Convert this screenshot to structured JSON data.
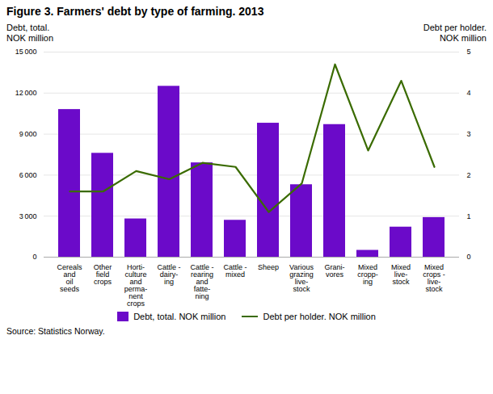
{
  "chart_data": {
    "type": "bar",
    "title": "Figure 3. Farmers' debt by type of farming. 2013",
    "ylabel": "Debt, total.\nNOK million",
    "y2label": "Debt per holder.\nNOK million",
    "caption": "Source: Statistics Norway.",
    "categories": [
      "Cereals\nand\noil\nseeds",
      "Other\nfield\ncrops",
      "Horti-\nculture\nand\nperma-\nnent\ncrops",
      "Cattle -\ndairy-\ning",
      "Cattle -\nrearing\nand\nfatte-\nning",
      "Cattle -\nmixed",
      "Sheep",
      "Various\ngrazing\nlive-\nstock",
      "Grani-\nvores",
      "Mixed\ncropp-\ning",
      "Mixed\nlive-\nstock",
      "Mixed\ncrops -\nlive-\nstock"
    ],
    "series": [
      {
        "name": "Debt, total. NOK million",
        "type": "bar",
        "color": "#6b0ac9",
        "values": [
          10800,
          7600,
          2800,
          12500,
          6900,
          2700,
          9800,
          5300,
          9700,
          500,
          2200,
          2900
        ]
      },
      {
        "name": "Debt per holder. NOK million",
        "type": "line",
        "axis": "y2",
        "color": "#3a6b00",
        "values": [
          1.6,
          1.6,
          2.1,
          1.9,
          2.3,
          2.2,
          1.1,
          1.8,
          4.7,
          2.6,
          4.3,
          2.2
        ]
      }
    ],
    "ylim": [
      0,
      15000
    ],
    "yticks": [
      0,
      {
        "value": 3000,
        "label": "3 000"
      },
      {
        "value": 6000,
        "label": "6 000"
      },
      {
        "value": 9000,
        "label": "9 000"
      },
      {
        "value": 12000,
        "label": "12 000"
      },
      {
        "value": 15000,
        "label": "15 000"
      }
    ],
    "y2lim": [
      0,
      5
    ],
    "y2ticks": [
      0,
      1,
      2,
      3,
      4,
      5
    ],
    "grid": true,
    "legend": "bottom"
  }
}
